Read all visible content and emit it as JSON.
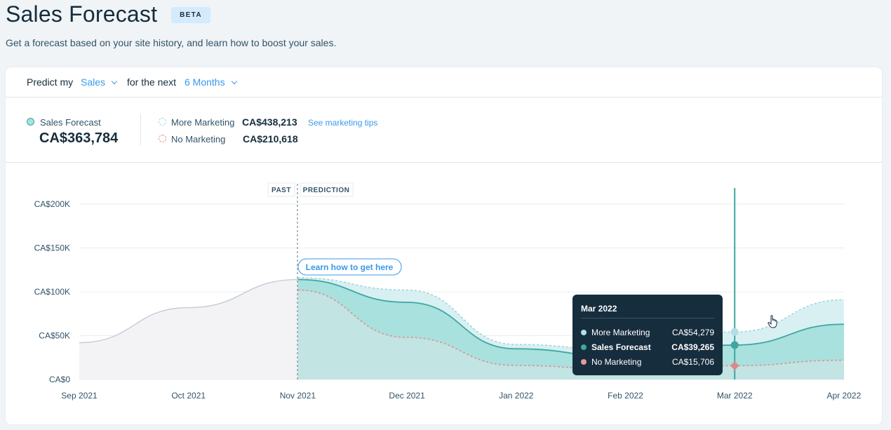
{
  "header": {
    "title": "Sales Forecast",
    "badge": "BETA",
    "subtitle": "Get a forecast based on your site history, and learn how to boost your sales."
  },
  "predict_bar": {
    "prefix": "Predict my",
    "metric": "Sales",
    "middle": "for the next",
    "period": "6 Months"
  },
  "summary": {
    "forecast_label": "Sales Forecast",
    "forecast_value": "CA$363,784",
    "more_label": "More Marketing",
    "more_value": "CA$438,213",
    "tips_link": "See marketing tips",
    "no_label": "No Marketing",
    "no_value": "CA$210,618"
  },
  "markers": {
    "past": "PAST",
    "prediction": "PREDICTION",
    "learn_button": "Learn how to get here"
  },
  "colors": {
    "forecast": "#3fa6a1",
    "forecast_fill": "#a8e1de",
    "more": "#9fd6df",
    "more_fill": "#d8f0f2",
    "no": "#e0908e",
    "no_dot": "#d98b8b",
    "past_line": "#c8d0d8",
    "past_fill": "#f3f3f5"
  },
  "tooltip": {
    "title": "Mar 2022",
    "rows": [
      {
        "label": "More Marketing",
        "value": "CA$54,279",
        "color": "#b3dde8"
      },
      {
        "label": "Sales Forecast",
        "value": "CA$39,265",
        "color": "#3fa6a1"
      },
      {
        "label": "No Marketing",
        "value": "CA$15,706",
        "color": "#e39a99"
      }
    ]
  },
  "chart_data": {
    "type": "area",
    "ylim": [
      0,
      200000
    ],
    "y_ticks": [
      {
        "value": 0,
        "label": "CA$0"
      },
      {
        "value": 50000,
        "label": "CA$50K"
      },
      {
        "value": 100000,
        "label": "CA$100K"
      },
      {
        "value": 150000,
        "label": "CA$150K"
      },
      {
        "value": 200000,
        "label": "CA$200K"
      }
    ],
    "x_labels": [
      "Sep 2021",
      "Oct 2021",
      "Nov 2021",
      "Dec 2021",
      "Jan 2022",
      "Feb 2022",
      "Mar 2022",
      "Apr 2022"
    ],
    "split_index": 2,
    "selected_index": 6,
    "series": [
      {
        "name": "Sales Forecast",
        "role": "past",
        "x": [
          0,
          1,
          2
        ],
        "values": [
          42000,
          82000,
          114000
        ]
      },
      {
        "name": "Sales Forecast",
        "role": "forecast",
        "x": [
          2,
          3,
          4,
          5,
          6,
          7
        ],
        "values": [
          114000,
          88000,
          35000,
          25000,
          39265,
          63000
        ]
      },
      {
        "name": "More Marketing",
        "role": "more",
        "x": [
          2,
          3,
          4,
          5,
          6,
          7
        ],
        "values": [
          116000,
          102000,
          40000,
          33000,
          54279,
          91000
        ]
      },
      {
        "name": "No Marketing",
        "role": "no",
        "x": [
          2,
          3,
          4,
          5,
          6,
          7
        ],
        "values": [
          102000,
          48000,
          16000,
          11000,
          15706,
          22000
        ]
      }
    ]
  }
}
